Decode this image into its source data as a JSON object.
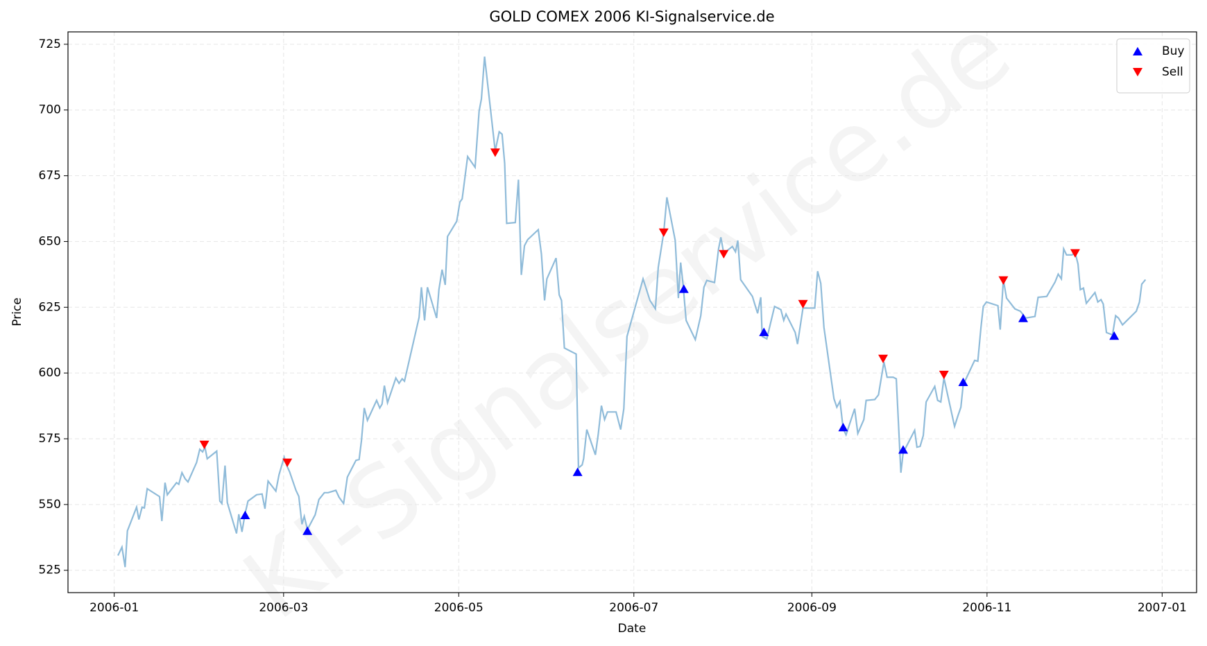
{
  "chart_data": {
    "type": "line",
    "title": "GOLD COMEX 2006 KI-Signalservice.de",
    "watermark": "KI-Signalservice.de",
    "xlabel": "Date",
    "ylabel": "Price",
    "color": "#8fbbd9",
    "x": [
      1.3,
      2.7,
      3.8,
      4.6,
      7.8,
      8.6,
      9.7,
      10.5,
      11.5,
      15.8,
      16.6,
      17.7,
      18.5,
      21.7,
      22.5,
      23.6,
      24.7,
      25.7,
      28.7,
      29.8,
      30.8,
      31.6,
      32.4,
      35.7,
      36.8,
      37.5,
      38.6,
      39.4,
      42.6,
      43.4,
      44.5,
      45.6,
      46.6,
      49.6,
      51.5,
      52.5,
      53.6,
      56.3,
      57.4,
      59.2,
      60.1,
      61.1,
      63.3,
      64.3,
      65.4,
      66.2,
      67.3,
      70,
      71.3,
      73.2,
      74.5,
      77.2,
      78.3,
      79.9,
      81.2,
      84.2,
      85.3,
      86.1,
      87.1,
      88.2,
      91.4,
      92.5,
      93.3,
      94.1,
      95.2,
      98.1,
      99.2,
      100.3,
      101.1,
      106.2,
      107,
      108.1,
      109.1,
      112.3,
      113.1,
      114.2,
      115.3,
      116.1,
      119.3,
      120.4,
      121.2,
      123.1,
      125.7,
      127.1,
      127.9,
      129,
      132.7,
      134.1,
      135.1,
      136,
      136.7,
      139.7,
      140.8,
      141.8,
      142.9,
      144,
      147.7,
      148.8,
      149.9,
      150.7,
      153.9,
      155,
      155.8,
      156.8,
      160.9,
      161.7,
      163,
      163.5,
      164.6,
      167.6,
      168.6,
      169.7,
      170.8,
      171.8,
      174.8,
      176.4,
      177.5,
      178.6,
      184.2,
      186.6,
      188.5,
      189.5,
      191.4,
      192.5,
      195.4,
      196.5,
      197.3,
      198.1,
      199.2,
      202.4,
      204.3,
      205.4,
      206.4,
      209.1,
      210.5,
      211.3,
      212.3,
      215.3,
      216.4,
      217.2,
      218.2,
      222.3,
      223.1,
      224.1,
      225.2,
      225.7,
      227.3,
      230,
      232.2,
      233.2,
      234,
      237.2,
      238,
      239.9,
      241,
      244,
      245,
      246.1,
      247.2,
      250.7,
      251.7,
      252.8,
      253.9,
      254.9,
      257.9,
      259,
      261.1,
      261.9,
      264.9,
      266.2,
      268.1,
      269.2,
      271.3,
      272.4,
      274,
      274.8,
      278.8,
      279.6,
      280.7,
      281.8,
      282.8,
      285.8,
      286.8,
      287.9,
      289,
      292.7,
      293.8,
      294.9,
      295.7,
      299.7,
      300.8,
      301.9,
      302.7,
      303.8,
      307.8,
      308.6,
      309.7,
      310.8,
      313.7,
      315.6,
      317.5,
      320.7,
      321.8,
      324.8,
      327.7,
      328.8,
      329.9,
      330.7,
      331.7,
      333.6,
      334.7,
      335.7,
      336.5,
      337.6,
      338.6,
      341.6,
      342.6,
      343.7,
      344.5,
      345.6,
      347.7,
      348.8,
      349.8,
      351.2,
      356,
      357.1,
      357.9,
      359.2
    ],
    "values": [
      530.6,
      533.8,
      526.2,
      540,
      549,
      544.3,
      549,
      548.7,
      556,
      553,
      543.7,
      558.3,
      553.7,
      558.3,
      557.7,
      562.1,
      559.8,
      558.6,
      566,
      571,
      570,
      571.8,
      567.4,
      570.3,
      551.3,
      550.4,
      564.8,
      550.7,
      539,
      546.3,
      539.6,
      546.6,
      551.3,
      553.7,
      554,
      548.4,
      558.9,
      555.1,
      561.3,
      568,
      564.8,
      562.4,
      555.4,
      553.1,
      542.5,
      545.5,
      540.5,
      546.1,
      551.9,
      554.5,
      554.5,
      555.4,
      552.8,
      550.4,
      560.4,
      566.8,
      567.1,
      574.1,
      586.7,
      582,
      589.6,
      586.7,
      588.2,
      595.2,
      588.7,
      598.1,
      596.1,
      597.8,
      596.9,
      621.2,
      632.6,
      620,
      632.6,
      620.9,
      631.7,
      639.3,
      633.5,
      651.9,
      657.7,
      665,
      666.2,
      682.3,
      678.2,
      699.6,
      704.2,
      720.3,
      684.4,
      691.7,
      690.8,
      679.7,
      656.9,
      657.2,
      673.5,
      637.3,
      648.4,
      650.7,
      654.5,
      645.2,
      627.6,
      635.8,
      643.7,
      629.7,
      627.6,
      609.5,
      607.2,
      563.9,
      565.1,
      567.4,
      578.5,
      568.9,
      576.8,
      587.6,
      582.3,
      585.2,
      585.2,
      578.5,
      586.4,
      613.9,
      635.8,
      627.6,
      624.4,
      640.2,
      653.4,
      666.8,
      650.4,
      628.5,
      642,
      634.1,
      620,
      612.7,
      621.8,
      632.6,
      635.2,
      634.4,
      647.2,
      651.6,
      645.5,
      648.1,
      646.1,
      650.4,
      635.5,
      629.1,
      626.2,
      622.7,
      628.8,
      613.9,
      613,
      625.3,
      624.1,
      620,
      622.4,
      615.4,
      611,
      624.7,
      624.7,
      624.7,
      638.7,
      634.1,
      617.4,
      590.2,
      587,
      589.3,
      578.8,
      576.5,
      586.4,
      577,
      582.3,
      589.6,
      589.9,
      591.7,
      604.2,
      598.4,
      598.4,
      597.8,
      562.1,
      569.7,
      578.2,
      571.8,
      572.1,
      576.2,
      589,
      594.9,
      589.6,
      589,
      598.1,
      579.7,
      583.5,
      587,
      595.5,
      604.8,
      604.5,
      617.4,
      625.3,
      627,
      625.6,
      616.5,
      635.5,
      628.5,
      624.4,
      623.5,
      620.9,
      621.5,
      628.8,
      629.1,
      634.6,
      637.6,
      635.8,
      647.2,
      644.9,
      644.9,
      645.8,
      641.4,
      631.7,
      632.3,
      626.5,
      630.6,
      627,
      627.9,
      626.2,
      615.4,
      614.5,
      621.8,
      620.9,
      618.3,
      623.5,
      627,
      633.8,
      635.5
    ],
    "series": [
      {
        "name": "Buy",
        "color": "#0000ff",
        "marker": "up",
        "x": [
          45.6,
          67.3,
          161.4,
          198.4,
          226.3,
          253.9,
          274.8,
          295.7,
          316.6,
          348.3
        ],
        "values": [
          546,
          540,
          562.4,
          632,
          615.6,
          579.4,
          570.9,
          596.6,
          620.9,
          614.2
        ]
      },
      {
        "name": "Sell",
        "color": "#ff0000",
        "marker": "down",
        "x": [
          31.4,
          60.3,
          132.7,
          191.4,
          212.3,
          239.9,
          267.8,
          289,
          309.7,
          334.7
        ],
        "values": [
          572.7,
          565.9,
          683.8,
          653.4,
          645.2,
          626.2,
          605.4,
          599.3,
          635.2,
          645.5
        ]
      }
    ],
    "xlim": [
      -16.1,
      377
    ],
    "xticks": [
      {
        "value": 0,
        "label": "2006-01"
      },
      {
        "value": 59,
        "label": "2006-03"
      },
      {
        "value": 120,
        "label": "2006-05"
      },
      {
        "value": 181,
        "label": "2006-07"
      },
      {
        "value": 243,
        "label": "2006-09"
      },
      {
        "value": 304,
        "label": "2006-11"
      },
      {
        "value": 365,
        "label": "2007-01"
      }
    ],
    "ylim": [
      516.5,
      729.7
    ],
    "yticks": [
      525,
      550,
      575,
      600,
      625,
      650,
      675,
      700,
      725
    ],
    "grid": true,
    "legend": "upper right"
  }
}
